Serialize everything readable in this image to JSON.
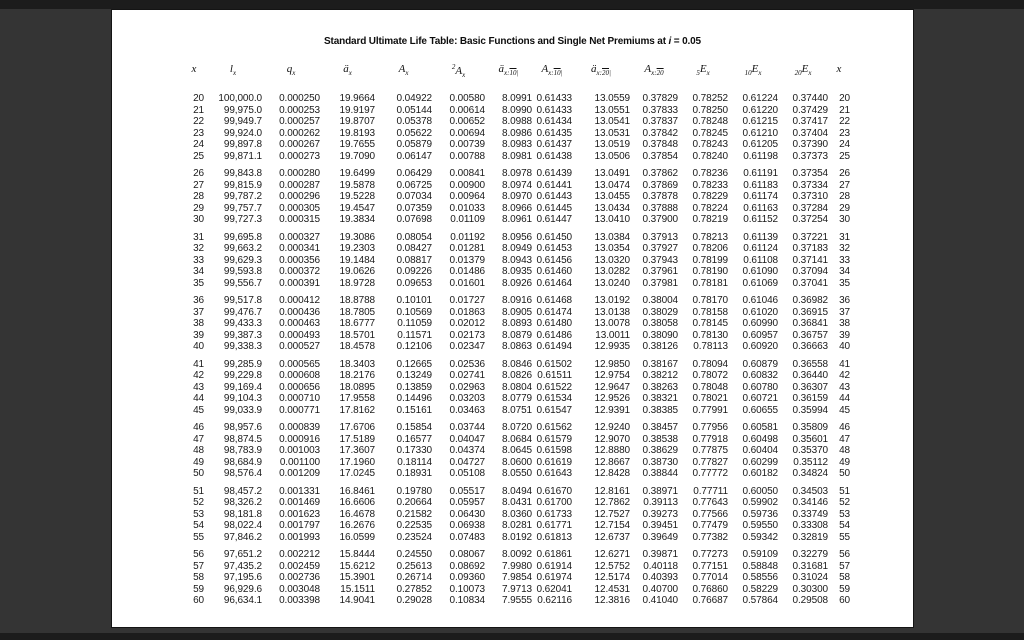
{
  "title": {
    "prefix": "Standard Ultimate Life Table: Basic Functions and Single Net Premiums at ",
    "interest_symbol": "i",
    "suffix": " = 0.05"
  },
  "colors": {
    "surround": "#343434",
    "edge_strip": "#1c1c1c",
    "page": "#ffffff",
    "text": "#1a1a1a"
  },
  "table": {
    "columns": [
      {
        "key": "x",
        "main": "x"
      },
      {
        "key": "lx",
        "main": "l",
        "sub": [
          {
            "t": "x"
          }
        ]
      },
      {
        "key": "qx",
        "main": "q",
        "sub": [
          {
            "t": "x"
          }
        ]
      },
      {
        "key": "ax",
        "main": "ä",
        "sub": [
          {
            "t": "x"
          }
        ]
      },
      {
        "key": "Ax",
        "main": "A",
        "sub": [
          {
            "t": "x"
          }
        ]
      },
      {
        "key": "A2x",
        "presup": "2",
        "main": "A",
        "sub": [
          {
            "t": "x"
          }
        ]
      },
      {
        "key": "ax10",
        "main": "ä",
        "sub": [
          {
            "t": "x:"
          },
          {
            "t": "10",
            "over": true
          },
          {
            "t": "|"
          }
        ]
      },
      {
        "key": "Ax10",
        "main": "A",
        "sub": [
          {
            "t": "x:"
          },
          {
            "t": "10",
            "over": true
          },
          {
            "t": "|"
          }
        ]
      },
      {
        "key": "ax20",
        "main": "ä",
        "sub": [
          {
            "t": "x:"
          },
          {
            "t": "20",
            "over": true
          },
          {
            "t": "|"
          }
        ]
      },
      {
        "key": "Ax20",
        "main": "A",
        "sub": [
          {
            "t": "x:"
          },
          {
            "t": "20",
            "over": true
          }
        ]
      },
      {
        "key": "E5x",
        "presub": "5",
        "main": "E",
        "sub": [
          {
            "t": "x"
          }
        ]
      },
      {
        "key": "E10x",
        "presub": "10",
        "main": "E",
        "sub": [
          {
            "t": "x"
          }
        ]
      },
      {
        "key": "E20x",
        "presub": "20",
        "main": "E",
        "sub": [
          {
            "t": "x"
          }
        ]
      },
      {
        "key": "x2",
        "main": "x"
      }
    ],
    "group_starts": [
      26,
      31,
      36,
      41,
      46,
      51,
      56
    ],
    "rows": [
      [
        "20",
        "100,000.0",
        "0.000250",
        "19.9664",
        "0.04922",
        "0.00580",
        "8.0991",
        "0.61433",
        "13.0559",
        "0.37829",
        "0.78252",
        "0.61224",
        "0.37440",
        "20"
      ],
      [
        "21",
        "99,975.0",
        "0.000253",
        "19.9197",
        "0.05144",
        "0.00614",
        "8.0990",
        "0.61433",
        "13.0551",
        "0.37833",
        "0.78250",
        "0.61220",
        "0.37429",
        "21"
      ],
      [
        "22",
        "99,949.7",
        "0.000257",
        "19.8707",
        "0.05378",
        "0.00652",
        "8.0988",
        "0.61434",
        "13.0541",
        "0.37837",
        "0.78248",
        "0.61215",
        "0.37417",
        "22"
      ],
      [
        "23",
        "99,924.0",
        "0.000262",
        "19.8193",
        "0.05622",
        "0.00694",
        "8.0986",
        "0.61435",
        "13.0531",
        "0.37842",
        "0.78245",
        "0.61210",
        "0.37404",
        "23"
      ],
      [
        "24",
        "99,897.8",
        "0.000267",
        "19.7655",
        "0.05879",
        "0.00739",
        "8.0983",
        "0.61437",
        "13.0519",
        "0.37848",
        "0.78243",
        "0.61205",
        "0.37390",
        "24"
      ],
      [
        "25",
        "99,871.1",
        "0.000273",
        "19.7090",
        "0.06147",
        "0.00788",
        "8.0981",
        "0.61438",
        "13.0506",
        "0.37854",
        "0.78240",
        "0.61198",
        "0.37373",
        "25"
      ],
      [
        "26",
        "99,843.8",
        "0.000280",
        "19.6499",
        "0.06429",
        "0.00841",
        "8.0978",
        "0.61439",
        "13.0491",
        "0.37862",
        "0.78236",
        "0.61191",
        "0.37354",
        "26"
      ],
      [
        "27",
        "99,815.9",
        "0.000287",
        "19.5878",
        "0.06725",
        "0.00900",
        "8.0974",
        "0.61441",
        "13.0474",
        "0.37869",
        "0.78233",
        "0.61183",
        "0.37334",
        "27"
      ],
      [
        "28",
        "99,787.2",
        "0.000296",
        "19.5228",
        "0.07034",
        "0.00964",
        "8.0970",
        "0.61443",
        "13.0455",
        "0.37878",
        "0.78229",
        "0.61174",
        "0.37310",
        "28"
      ],
      [
        "29",
        "99,757.7",
        "0.000305",
        "19.4547",
        "0.07359",
        "0.01033",
        "8.0966",
        "0.61445",
        "13.0434",
        "0.37888",
        "0.78224",
        "0.61163",
        "0.37284",
        "29"
      ],
      [
        "30",
        "99,727.3",
        "0.000315",
        "19.3834",
        "0.07698",
        "0.01109",
        "8.0961",
        "0.61447",
        "13.0410",
        "0.37900",
        "0.78219",
        "0.61152",
        "0.37254",
        "30"
      ],
      [
        "31",
        "99,695.8",
        "0.000327",
        "19.3086",
        "0.08054",
        "0.01192",
        "8.0956",
        "0.61450",
        "13.0384",
        "0.37913",
        "0.78213",
        "0.61139",
        "0.37221",
        "31"
      ],
      [
        "32",
        "99,663.2",
        "0.000341",
        "19.2303",
        "0.08427",
        "0.01281",
        "8.0949",
        "0.61453",
        "13.0354",
        "0.37927",
        "0.78206",
        "0.61124",
        "0.37183",
        "32"
      ],
      [
        "33",
        "99,629.3",
        "0.000356",
        "19.1484",
        "0.08817",
        "0.01379",
        "8.0943",
        "0.61456",
        "13.0320",
        "0.37943",
        "0.78199",
        "0.61108",
        "0.37141",
        "33"
      ],
      [
        "34",
        "99,593.8",
        "0.000372",
        "19.0626",
        "0.09226",
        "0.01486",
        "8.0935",
        "0.61460",
        "13.0282",
        "0.37961",
        "0.78190",
        "0.61090",
        "0.37094",
        "34"
      ],
      [
        "35",
        "99,556.7",
        "0.000391",
        "18.9728",
        "0.09653",
        "0.01601",
        "8.0926",
        "0.61464",
        "13.0240",
        "0.37981",
        "0.78181",
        "0.61069",
        "0.37041",
        "35"
      ],
      [
        "36",
        "99,517.8",
        "0.000412",
        "18.8788",
        "0.10101",
        "0.01727",
        "8.0916",
        "0.61468",
        "13.0192",
        "0.38004",
        "0.78170",
        "0.61046",
        "0.36982",
        "36"
      ],
      [
        "37",
        "99,476.7",
        "0.000436",
        "18.7805",
        "0.10569",
        "0.01863",
        "8.0905",
        "0.61474",
        "13.0138",
        "0.38029",
        "0.78158",
        "0.61020",
        "0.36915",
        "37"
      ],
      [
        "38",
        "99,433.3",
        "0.000463",
        "18.6777",
        "0.11059",
        "0.02012",
        "8.0893",
        "0.61480",
        "13.0078",
        "0.38058",
        "0.78145",
        "0.60990",
        "0.36841",
        "38"
      ],
      [
        "39",
        "99,387.3",
        "0.000493",
        "18.5701",
        "0.11571",
        "0.02173",
        "8.0879",
        "0.61486",
        "13.0011",
        "0.38090",
        "0.78130",
        "0.60957",
        "0.36757",
        "39"
      ],
      [
        "40",
        "99,338.3",
        "0.000527",
        "18.4578",
        "0.12106",
        "0.02347",
        "8.0863",
        "0.61494",
        "12.9935",
        "0.38126",
        "0.78113",
        "0.60920",
        "0.36663",
        "40"
      ],
      [
        "41",
        "99,285.9",
        "0.000565",
        "18.3403",
        "0.12665",
        "0.02536",
        "8.0846",
        "0.61502",
        "12.9850",
        "0.38167",
        "0.78094",
        "0.60879",
        "0.36558",
        "41"
      ],
      [
        "42",
        "99,229.8",
        "0.000608",
        "18.2176",
        "0.13249",
        "0.02741",
        "8.0826",
        "0.61511",
        "12.9754",
        "0.38212",
        "0.78072",
        "0.60832",
        "0.36440",
        "42"
      ],
      [
        "43",
        "99,169.4",
        "0.000656",
        "18.0895",
        "0.13859",
        "0.02963",
        "8.0804",
        "0.61522",
        "12.9647",
        "0.38263",
        "0.78048",
        "0.60780",
        "0.36307",
        "43"
      ],
      [
        "44",
        "99,104.3",
        "0.000710",
        "17.9558",
        "0.14496",
        "0.03203",
        "8.0779",
        "0.61534",
        "12.9526",
        "0.38321",
        "0.78021",
        "0.60721",
        "0.36159",
        "44"
      ],
      [
        "45",
        "99,033.9",
        "0.000771",
        "17.8162",
        "0.15161",
        "0.03463",
        "8.0751",
        "0.61547",
        "12.9391",
        "0.38385",
        "0.77991",
        "0.60655",
        "0.35994",
        "45"
      ],
      [
        "46",
        "98,957.6",
        "0.000839",
        "17.6706",
        "0.15854",
        "0.03744",
        "8.0720",
        "0.61562",
        "12.9240",
        "0.38457",
        "0.77956",
        "0.60581",
        "0.35809",
        "46"
      ],
      [
        "47",
        "98,874.5",
        "0.000916",
        "17.5189",
        "0.16577",
        "0.04047",
        "8.0684",
        "0.61579",
        "12.9070",
        "0.38538",
        "0.77918",
        "0.60498",
        "0.35601",
        "47"
      ],
      [
        "48",
        "98,783.9",
        "0.001003",
        "17.3607",
        "0.17330",
        "0.04374",
        "8.0645",
        "0.61598",
        "12.8880",
        "0.38629",
        "0.77875",
        "0.60404",
        "0.35370",
        "48"
      ],
      [
        "49",
        "98,684.9",
        "0.001100",
        "17.1960",
        "0.18114",
        "0.04727",
        "8.0600",
        "0.61619",
        "12.8667",
        "0.38730",
        "0.77827",
        "0.60299",
        "0.35112",
        "49"
      ],
      [
        "50",
        "98,576.4",
        "0.001209",
        "17.0245",
        "0.18931",
        "0.05108",
        "8.0550",
        "0.61643",
        "12.8428",
        "0.38844",
        "0.77772",
        "0.60182",
        "0.34824",
        "50"
      ],
      [
        "51",
        "98,457.2",
        "0.001331",
        "16.8461",
        "0.19780",
        "0.05517",
        "8.0494",
        "0.61670",
        "12.8161",
        "0.38971",
        "0.77711",
        "0.60050",
        "0.34503",
        "51"
      ],
      [
        "52",
        "98,326.2",
        "0.001469",
        "16.6606",
        "0.20664",
        "0.05957",
        "8.0431",
        "0.61700",
        "12.7862",
        "0.39113",
        "0.77643",
        "0.59902",
        "0.34146",
        "52"
      ],
      [
        "53",
        "98,181.8",
        "0.001623",
        "16.4678",
        "0.21582",
        "0.06430",
        "8.0360",
        "0.61733",
        "12.7527",
        "0.39273",
        "0.77566",
        "0.59736",
        "0.33749",
        "53"
      ],
      [
        "54",
        "98,022.4",
        "0.001797",
        "16.2676",
        "0.22535",
        "0.06938",
        "8.0281",
        "0.61771",
        "12.7154",
        "0.39451",
        "0.77479",
        "0.59550",
        "0.33308",
        "54"
      ],
      [
        "55",
        "97,846.2",
        "0.001993",
        "16.0599",
        "0.23524",
        "0.07483",
        "8.0192",
        "0.61813",
        "12.6737",
        "0.39649",
        "0.77382",
        "0.59342",
        "0.32819",
        "55"
      ],
      [
        "56",
        "97,651.2",
        "0.002212",
        "15.8444",
        "0.24550",
        "0.08067",
        "8.0092",
        "0.61861",
        "12.6271",
        "0.39871",
        "0.77273",
        "0.59109",
        "0.32279",
        "56"
      ],
      [
        "57",
        "97,435.2",
        "0.002459",
        "15.6212",
        "0.25613",
        "0.08692",
        "7.9980",
        "0.61914",
        "12.5752",
        "0.40118",
        "0.77151",
        "0.58848",
        "0.31681",
        "57"
      ],
      [
        "58",
        "97,195.6",
        "0.002736",
        "15.3901",
        "0.26714",
        "0.09360",
        "7.9854",
        "0.61974",
        "12.5174",
        "0.40393",
        "0.77014",
        "0.58556",
        "0.31024",
        "58"
      ],
      [
        "59",
        "96,929.6",
        "0.003048",
        "15.1511",
        "0.27852",
        "0.10073",
        "7.9713",
        "0.62041",
        "12.4531",
        "0.40700",
        "0.76860",
        "0.58229",
        "0.30300",
        "59"
      ],
      [
        "60",
        "96,634.1",
        "0.003398",
        "14.9041",
        "0.29028",
        "0.10834",
        "7.9555",
        "0.62116",
        "12.3816",
        "0.41040",
        "0.76687",
        "0.57864",
        "0.29508",
        "60"
      ]
    ]
  }
}
